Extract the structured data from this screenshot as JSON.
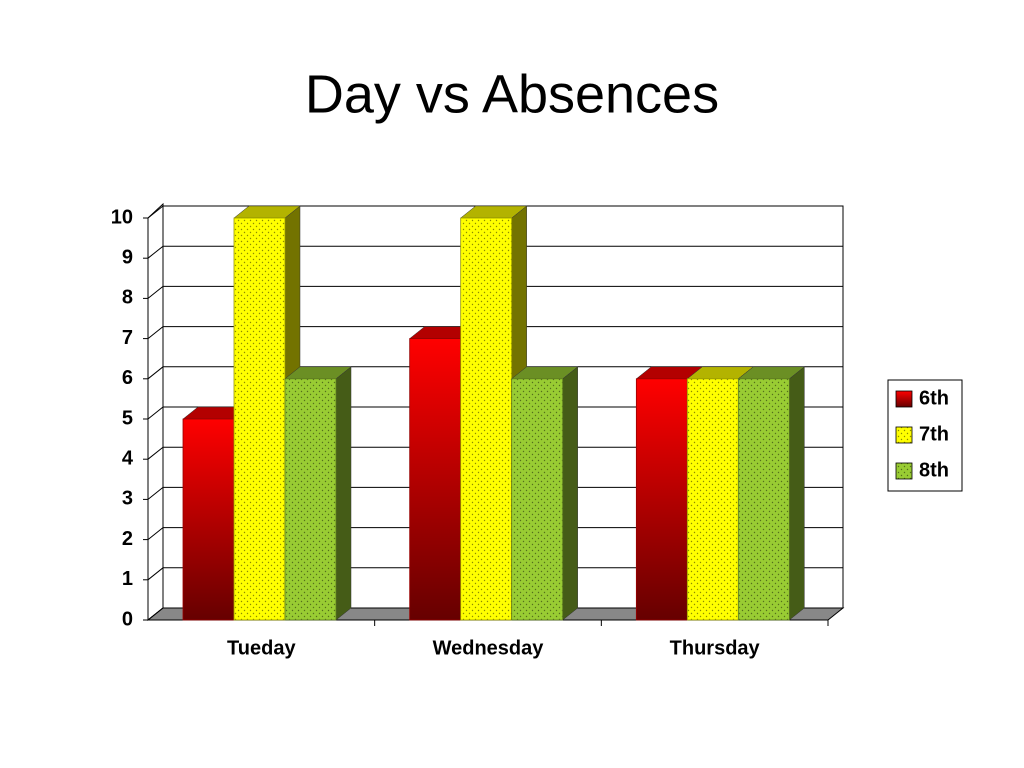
{
  "chart_data": {
    "type": "bar3d",
    "title": "Day vs Absences",
    "categories": [
      "Tueday",
      "Wednesday",
      "Thursday"
    ],
    "series": [
      {
        "name": "6th",
        "color": "#ff0000",
        "values": [
          5,
          7,
          6
        ]
      },
      {
        "name": "7th",
        "color": "#ffff00",
        "values": [
          10,
          10,
          6
        ]
      },
      {
        "name": "8th",
        "color": "#99cc33",
        "values": [
          6,
          6,
          6
        ]
      }
    ],
    "ylim": [
      0,
      10
    ],
    "yticks": [
      0,
      1,
      2,
      3,
      4,
      5,
      6,
      7,
      8,
      9,
      10
    ],
    "grid": true,
    "legend": "right"
  }
}
